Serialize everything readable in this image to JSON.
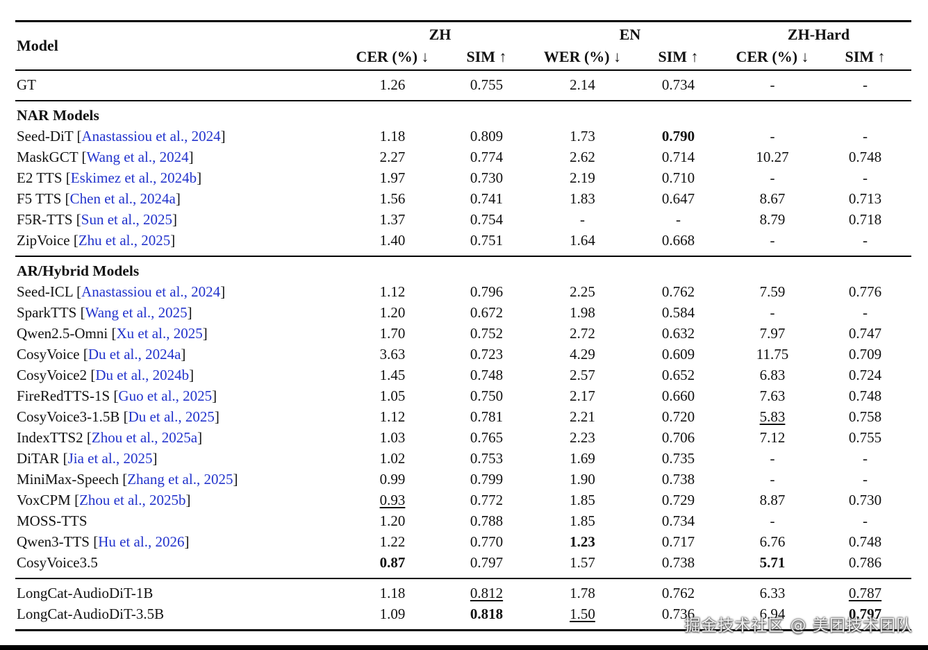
{
  "colors": {
    "text": "#111111",
    "cite": "#2233cc",
    "rule": "#000000",
    "watermark": "#f2f2f2"
  },
  "header": {
    "model_col": "Model",
    "groups": [
      {
        "label": "ZH",
        "subcols": [
          "CER (%) ↓",
          "SIM ↑"
        ]
      },
      {
        "label": "EN",
        "subcols": [
          "WER (%) ↓",
          "SIM ↑"
        ]
      },
      {
        "label": "ZH-Hard",
        "subcols": [
          "CER (%) ↓",
          "SIM ↑"
        ]
      }
    ]
  },
  "sections": [
    {
      "title": "",
      "rows": [
        {
          "name": "GT",
          "cite": "",
          "cells": [
            {
              "t": "1.26"
            },
            {
              "t": "0.755"
            },
            {
              "t": "2.14"
            },
            {
              "t": "0.734"
            },
            {
              "t": "-"
            },
            {
              "t": "-"
            }
          ]
        }
      ]
    },
    {
      "title": "NAR Models",
      "rows": [
        {
          "name": "Seed-DiT",
          "cite": "Anastassiou et al., 2024",
          "cells": [
            {
              "t": "1.18"
            },
            {
              "t": "0.809"
            },
            {
              "t": "1.73"
            },
            {
              "t": "0.790",
              "b": true
            },
            {
              "t": "-"
            },
            {
              "t": "-"
            }
          ]
        },
        {
          "name": "MaskGCT",
          "cite": "Wang et al., 2024",
          "cells": [
            {
              "t": "2.27"
            },
            {
              "t": "0.774"
            },
            {
              "t": "2.62"
            },
            {
              "t": "0.714"
            },
            {
              "t": "10.27"
            },
            {
              "t": "0.748"
            }
          ]
        },
        {
          "name": "E2 TTS",
          "cite": "Eskimez et al., 2024b",
          "cells": [
            {
              "t": "1.97"
            },
            {
              "t": "0.730"
            },
            {
              "t": "2.19"
            },
            {
              "t": "0.710"
            },
            {
              "t": "-"
            },
            {
              "t": "-"
            }
          ]
        },
        {
          "name": "F5 TTS",
          "cite": "Chen et al., 2024a",
          "cells": [
            {
              "t": "1.56"
            },
            {
              "t": "0.741"
            },
            {
              "t": "1.83"
            },
            {
              "t": "0.647"
            },
            {
              "t": "8.67"
            },
            {
              "t": "0.713"
            }
          ]
        },
        {
          "name": "F5R-TTS",
          "cite": "Sun et al., 2025",
          "cells": [
            {
              "t": "1.37"
            },
            {
              "t": "0.754"
            },
            {
              "t": "-"
            },
            {
              "t": "-"
            },
            {
              "t": "8.79"
            },
            {
              "t": "0.718"
            }
          ]
        },
        {
          "name": "ZipVoice",
          "cite": "Zhu et al., 2025",
          "cells": [
            {
              "t": "1.40"
            },
            {
              "t": "0.751"
            },
            {
              "t": "1.64"
            },
            {
              "t": "0.668"
            },
            {
              "t": "-"
            },
            {
              "t": "-"
            }
          ]
        }
      ]
    },
    {
      "title": "AR/Hybrid Models",
      "rows": [
        {
          "name": "Seed-ICL",
          "cite": "Anastassiou et al., 2024",
          "cells": [
            {
              "t": "1.12"
            },
            {
              "t": "0.796"
            },
            {
              "t": "2.25"
            },
            {
              "t": "0.762"
            },
            {
              "t": "7.59"
            },
            {
              "t": "0.776"
            }
          ]
        },
        {
          "name": "SparkTTS",
          "cite": "Wang et al., 2025",
          "cells": [
            {
              "t": "1.20"
            },
            {
              "t": "0.672"
            },
            {
              "t": "1.98"
            },
            {
              "t": "0.584"
            },
            {
              "t": "-"
            },
            {
              "t": "-"
            }
          ]
        },
        {
          "name": "Qwen2.5-Omni",
          "cite": "Xu et al., 2025",
          "cells": [
            {
              "t": "1.70"
            },
            {
              "t": "0.752"
            },
            {
              "t": "2.72"
            },
            {
              "t": "0.632"
            },
            {
              "t": "7.97"
            },
            {
              "t": "0.747"
            }
          ]
        },
        {
          "name": "CosyVoice",
          "cite": "Du et al., 2024a",
          "cells": [
            {
              "t": "3.63"
            },
            {
              "t": "0.723"
            },
            {
              "t": "4.29"
            },
            {
              "t": "0.609"
            },
            {
              "t": "11.75"
            },
            {
              "t": "0.709"
            }
          ]
        },
        {
          "name": "CosyVoice2",
          "cite": "Du et al., 2024b",
          "cells": [
            {
              "t": "1.45"
            },
            {
              "t": "0.748"
            },
            {
              "t": "2.57"
            },
            {
              "t": "0.652"
            },
            {
              "t": "6.83"
            },
            {
              "t": "0.724"
            }
          ]
        },
        {
          "name": "FireRedTTS-1S",
          "cite": "Guo et al., 2025",
          "cells": [
            {
              "t": "1.05"
            },
            {
              "t": "0.750"
            },
            {
              "t": "2.17"
            },
            {
              "t": "0.660"
            },
            {
              "t": "7.63"
            },
            {
              "t": "0.748"
            }
          ]
        },
        {
          "name": "CosyVoice3-1.5B",
          "cite": "Du et al., 2025",
          "cells": [
            {
              "t": "1.12"
            },
            {
              "t": "0.781"
            },
            {
              "t": "2.21"
            },
            {
              "t": "0.720"
            },
            {
              "t": "5.83",
              "u": true
            },
            {
              "t": "0.758"
            }
          ]
        },
        {
          "name": "IndexTTS2",
          "cite": "Zhou et al., 2025a",
          "cells": [
            {
              "t": "1.03"
            },
            {
              "t": "0.765"
            },
            {
              "t": "2.23"
            },
            {
              "t": "0.706"
            },
            {
              "t": "7.12"
            },
            {
              "t": "0.755"
            }
          ]
        },
        {
          "name": "DiTAR",
          "cite": "Jia et al., 2025",
          "cells": [
            {
              "t": "1.02"
            },
            {
              "t": "0.753"
            },
            {
              "t": "1.69"
            },
            {
              "t": "0.735"
            },
            {
              "t": "-"
            },
            {
              "t": "-"
            }
          ]
        },
        {
          "name": "MiniMax-Speech",
          "cite": "Zhang et al., 2025",
          "cells": [
            {
              "t": "0.99"
            },
            {
              "t": "0.799"
            },
            {
              "t": "1.90"
            },
            {
              "t": "0.738"
            },
            {
              "t": "-"
            },
            {
              "t": "-"
            }
          ]
        },
        {
          "name": "VoxCPM",
          "cite": "Zhou et al., 2025b",
          "cells": [
            {
              "t": "0.93",
              "u": true
            },
            {
              "t": "0.772"
            },
            {
              "t": "1.85"
            },
            {
              "t": "0.729"
            },
            {
              "t": "8.87"
            },
            {
              "t": "0.730"
            }
          ]
        },
        {
          "name": "MOSS-TTS",
          "cite": "",
          "cells": [
            {
              "t": "1.20"
            },
            {
              "t": "0.788"
            },
            {
              "t": "1.85"
            },
            {
              "t": "0.734"
            },
            {
              "t": "-"
            },
            {
              "t": "-"
            }
          ]
        },
        {
          "name": "Qwen3-TTS",
          "cite": "Hu et al., 2026",
          "cells": [
            {
              "t": "1.22"
            },
            {
              "t": "0.770"
            },
            {
              "t": "1.23",
              "b": true
            },
            {
              "t": "0.717"
            },
            {
              "t": "6.76"
            },
            {
              "t": "0.748"
            }
          ]
        },
        {
          "name": "CosyVoice3.5",
          "cite": "",
          "cells": [
            {
              "t": "0.87",
              "b": true
            },
            {
              "t": "0.797"
            },
            {
              "t": "1.57"
            },
            {
              "t": "0.738"
            },
            {
              "t": "5.71",
              "b": true
            },
            {
              "t": "0.786"
            }
          ]
        }
      ]
    },
    {
      "title": "",
      "rows": [
        {
          "name": "LongCat-AudioDiT-1B",
          "cite": "",
          "cells": [
            {
              "t": "1.18"
            },
            {
              "t": "0.812",
              "u": true
            },
            {
              "t": "1.78"
            },
            {
              "t": "0.762"
            },
            {
              "t": "6.33"
            },
            {
              "t": "0.787",
              "u": true
            }
          ]
        },
        {
          "name": "LongCat-AudioDiT-3.5B",
          "cite": "",
          "cells": [
            {
              "t": "1.09"
            },
            {
              "t": "0.818",
              "b": true
            },
            {
              "t": "1.50",
              "u": true
            },
            {
              "t": "0.736"
            },
            {
              "t": "6.94"
            },
            {
              "t": "0.797",
              "b": true
            }
          ]
        }
      ]
    }
  ],
  "watermark": "掘金技术社区 @ 美团技术团队"
}
